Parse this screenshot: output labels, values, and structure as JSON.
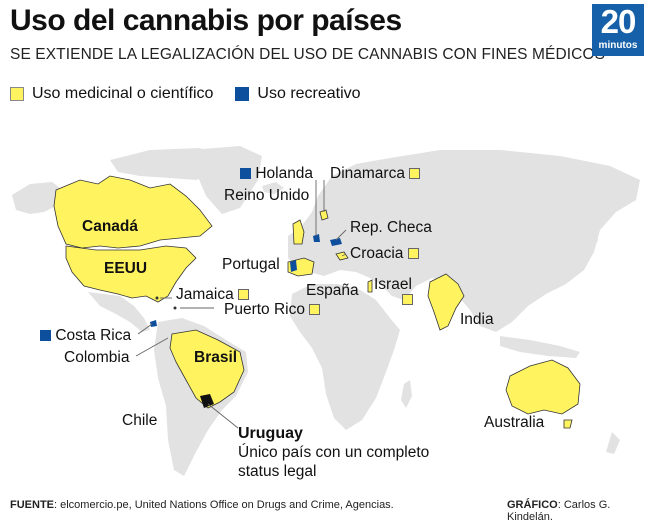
{
  "title": "Uso del cannabis por países",
  "subtitle": "SE EXTIENDE LA LEGALIZACIÓN DEL USO DE CANNABIS CON FINES MÉDICOS",
  "logo": {
    "number": "20",
    "word": "minutos"
  },
  "legend": {
    "medicinal": "Uso medicinal o científico",
    "recreativo": "Uso recreativo"
  },
  "colors": {
    "medicinal": "#fff45f",
    "recreativo": "#0d4f9c",
    "land": "#e2e2e2",
    "logo": "#1560a8"
  },
  "countries": {
    "canada": "Canadá",
    "eeuu": "EEUU",
    "jamaica": "Jamaica",
    "puerto_rico": "Puerto Rico",
    "costa_rica": "Costa Rica",
    "colombia": "Colombia",
    "brasil": "Brasil",
    "chile": "Chile",
    "holanda": "Holanda",
    "reino_unido": "Reino Unido",
    "dinamarca": "Dinamarca",
    "rep_checa": "Rep. Checa",
    "croacia": "Croacia",
    "portugal": "Portugal",
    "espana": "España",
    "israel": "Israel",
    "india": "India",
    "australia": "Australia"
  },
  "uruguay": {
    "name": "Uruguay",
    "note_line1": "Único país con un completo",
    "note_line2": "status legal"
  },
  "footer": {
    "source_label": "FUENTE",
    "source_text": ": elcomercio.pe, United Nations Office on Drugs and Crime, Agencias.",
    "graphic_label": "GRÁFICO",
    "graphic_text": ": Carlos G. Kindelán."
  }
}
